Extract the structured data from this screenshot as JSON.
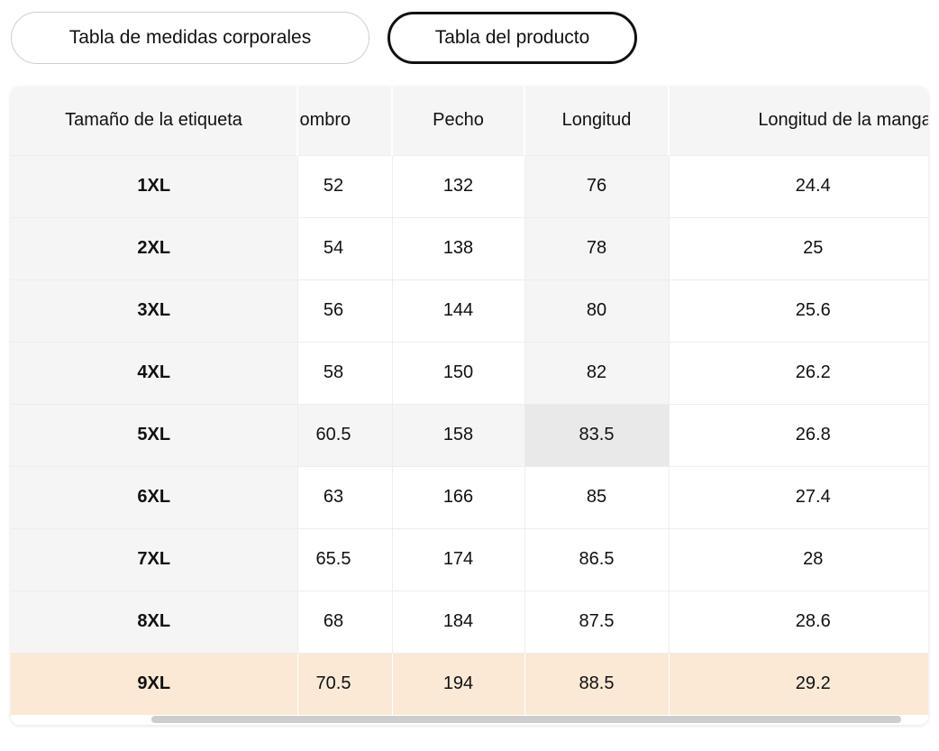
{
  "tabs": [
    {
      "label": "Tabla de medidas corporales",
      "active": false
    },
    {
      "label": "Tabla del producto",
      "active": true
    }
  ],
  "table": {
    "columns": [
      "Tamaño de la etiqueta",
      "Hombro",
      "Pecho",
      "Longitud",
      "Longitud de la manga"
    ],
    "rows": [
      {
        "label": "1XL",
        "values": [
          "52",
          "132",
          "76",
          "24.4"
        ]
      },
      {
        "label": "2XL",
        "values": [
          "54",
          "138",
          "78",
          "25"
        ]
      },
      {
        "label": "3XL",
        "values": [
          "56",
          "144",
          "80",
          "25.6"
        ]
      },
      {
        "label": "4XL",
        "values": [
          "58",
          "150",
          "82",
          "26.2"
        ]
      },
      {
        "label": "5XL",
        "values": [
          "60.5",
          "158",
          "83.5",
          "26.8"
        ]
      },
      {
        "label": "6XL",
        "values": [
          "63",
          "166",
          "85",
          "27.4"
        ]
      },
      {
        "label": "7XL",
        "values": [
          "65.5",
          "174",
          "86.5",
          "28"
        ]
      },
      {
        "label": "8XL",
        "values": [
          "68",
          "184",
          "87.5",
          "28.6"
        ]
      },
      {
        "label": "9XL",
        "values": [
          "70.5",
          "194",
          "88.5",
          "29.2"
        ]
      }
    ],
    "highlight": {
      "hover_row": "5XL",
      "hover_column": "Longitud",
      "hover_value": "83.5",
      "selected_row": "9XL"
    }
  },
  "colors": {
    "header_bg": "#f5f5f5",
    "hover_cell_bg": "#e9e9e9",
    "selected_row_bg": "#fbe9d6",
    "grid_line": "#ededed",
    "scrollbar_thumb": "#cdcdcd",
    "active_tab_border": "#111111",
    "inactive_tab_border": "#cfcfcf"
  }
}
